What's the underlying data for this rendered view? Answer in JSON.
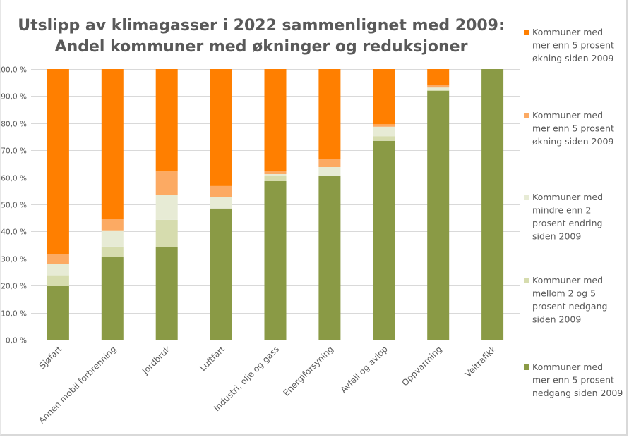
{
  "chart_data": {
    "type": "bar",
    "stacked": true,
    "percent_stacked": true,
    "title": "Utslipp av klimagasser i 2022 sammenlignet med 2009:",
    "subtitle": "Andel kommuner med økninger og reduksjoner",
    "xlabel": "",
    "ylabel": "",
    "ylim": [
      0,
      100
    ],
    "yticks": [
      "0,0 %",
      "10,0 %",
      "20,0 %",
      "30,0 %",
      "40,0 %",
      "50,0 %",
      "60,0 %",
      "70,0 %",
      "80,0 %",
      "90,0 %",
      "100,0 %"
    ],
    "grid": true,
    "legend_position": "right",
    "categories": [
      "Sjøfart",
      "Annen mobil forbrenning",
      "Jordbruk",
      "Luftfart",
      "Industri, olje og gass",
      "Energiforsyning",
      "Avfall og avløp",
      "Oppvarming",
      "Veitrafikk"
    ],
    "series": [
      {
        "name": "Kommuner med mer enn 5 prosent nedgang siden 2009",
        "legend_lines": [
          "Kommuner med",
          "mer enn 5 prosent",
          "nedgang siden 2009"
        ],
        "color": "#8a9a45",
        "values": [
          19.8,
          30.5,
          34.2,
          48.5,
          58.6,
          60.7,
          73.5,
          92.0,
          100.0
        ]
      },
      {
        "name": "Kommuner med mellom 2 og 5 prosent nedgang siden 2009",
        "legend_lines": [
          "Kommuner med",
          "mellom 2 og 5",
          "prosent nedgang",
          "siden 2009"
        ],
        "color": "#d6dcae",
        "values": [
          4.0,
          3.9,
          10.1,
          0.0,
          2.0,
          0.0,
          1.7,
          0.3,
          0.0
        ]
      },
      {
        "name": "Kommuner med mindre enn 2 prosent endring siden 2009",
        "legend_lines": [
          "Kommuner med",
          "mindre  enn 2",
          "prosent endring",
          "siden 2009"
        ],
        "color": "#e7ebd5",
        "values": [
          4.3,
          5.8,
          9.2,
          4.1,
          0.6,
          3.1,
          3.5,
          0.9,
          0.0
        ]
      },
      {
        "name": "Kommuner med mer enn 5 prosent økning siden 2009 (lys)",
        "legend_lines": [
          "Kommuner med",
          "mer enn 5 prosent",
          "økning siden 2009"
        ],
        "color": "#fcaa63",
        "values": [
          3.5,
          4.6,
          8.7,
          4.2,
          1.3,
          3.1,
          0.9,
          0.9,
          0.0
        ]
      },
      {
        "name": "Kommuner med mer enn 5 prosent økning siden 2009",
        "legend_lines": [
          "Kommuner med",
          "mer enn 5 prosent",
          "økning siden 2009"
        ],
        "color": "#ff7f00",
        "values": [
          68.4,
          55.2,
          37.8,
          43.2,
          37.5,
          33.1,
          20.4,
          5.9,
          0.0
        ]
      }
    ],
    "legend_order_top_to_bottom": [
      4,
      3,
      2,
      1,
      0
    ]
  }
}
